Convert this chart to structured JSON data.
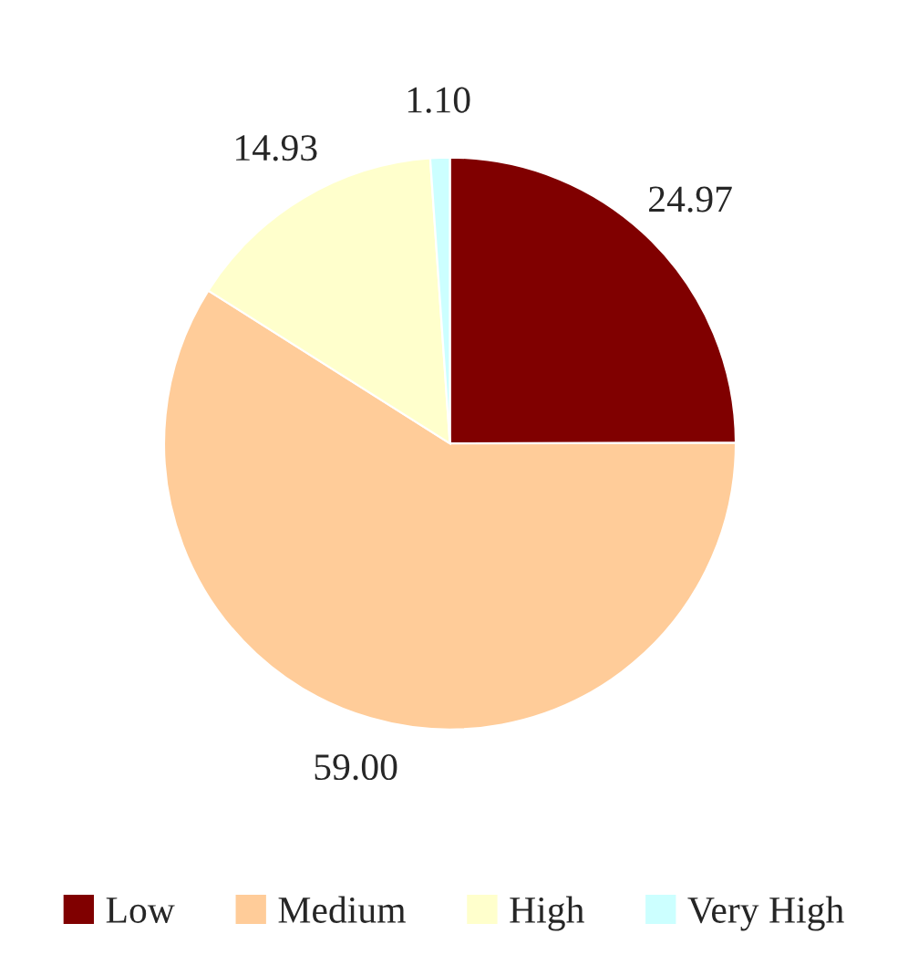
{
  "chart_data": {
    "type": "pie",
    "categories": [
      "Low",
      "Medium",
      "High",
      "Very High"
    ],
    "values": [
      24.97,
      59.0,
      14.93,
      1.1
    ],
    "colors": [
      "#800000",
      "#ffcc99",
      "#ffffcc",
      "#ccffff"
    ],
    "value_labels": [
      "24.97",
      "59.00",
      "14.93",
      "1.10"
    ],
    "legend": "bottom"
  }
}
